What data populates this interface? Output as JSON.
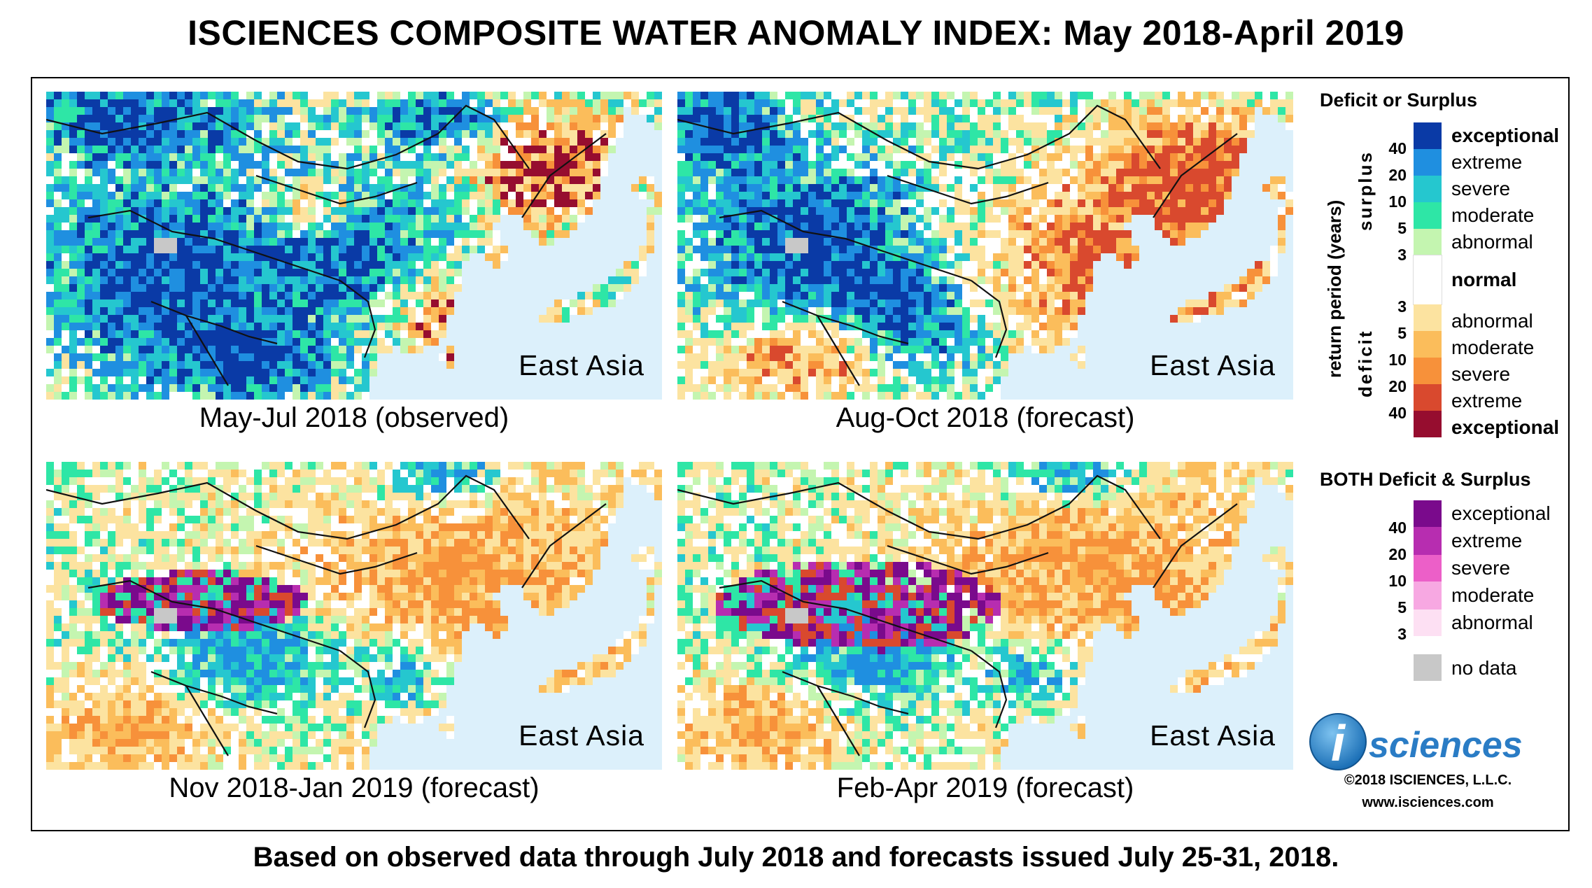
{
  "title": "ISCIENCES COMPOSITE WATER ANOMALY INDEX: May 2018-April 2019",
  "footer": "Based on observed data through July 2018 and forecasts issued July 25-31, 2018.",
  "region_label": "East Asia",
  "panels": [
    {
      "caption": "May-Jul 2018 (observed)",
      "scenario": "surplus"
    },
    {
      "caption": "Aug-Oct 2018 (forecast)",
      "scenario": "mixed"
    },
    {
      "caption": "Nov 2018-Jan 2019 (forecast)",
      "scenario": "deficit"
    },
    {
      "caption": "Feb-Apr 2019 (forecast)",
      "scenario": "deficit2"
    }
  ],
  "legend": {
    "deficit_surplus_title": "Deficit or Surplus",
    "axis_title": "return period (years)",
    "surplus_word": "surplus",
    "deficit_word": "deficit",
    "surplus": [
      {
        "label": "exceptional",
        "color": "#0a3aa6",
        "bold": true
      },
      {
        "label": "extreme",
        "color": "#1f8fe0",
        "bold": false
      },
      {
        "label": "severe",
        "color": "#25c7cf",
        "bold": false
      },
      {
        "label": "moderate",
        "color": "#2ee6a6",
        "bold": false
      },
      {
        "label": "abnormal",
        "color": "#c4f5b0",
        "bold": false
      }
    ],
    "normal": {
      "label": "normal",
      "color": "#ffffff"
    },
    "deficit": [
      {
        "label": "abnormal",
        "color": "#fce3a0",
        "bold": false
      },
      {
        "label": "moderate",
        "color": "#fbbd5b",
        "bold": false
      },
      {
        "label": "severe",
        "color": "#f7913a",
        "bold": false
      },
      {
        "label": "extreme",
        "color": "#d9492e",
        "bold": false
      },
      {
        "label": "exceptional",
        "color": "#960d2f",
        "bold": true
      }
    ],
    "surplus_ticks": [
      "40",
      "20",
      "10",
      "5",
      "3"
    ],
    "deficit_ticks": [
      "3",
      "5",
      "10",
      "20",
      "40"
    ],
    "both_title": "BOTH Deficit & Surplus",
    "both": [
      {
        "label": "exceptional",
        "color": "#7a0a8c"
      },
      {
        "label": "extreme",
        "color": "#b72db0"
      },
      {
        "label": "severe",
        "color": "#ec5fc8"
      },
      {
        "label": "moderate",
        "color": "#f7a8e2"
      },
      {
        "label": "abnormal",
        "color": "#fde0f3"
      }
    ],
    "both_ticks": [
      "40",
      "20",
      "10",
      "5",
      "3"
    ],
    "no_data": {
      "label": "no data",
      "color": "#c8c8c8"
    }
  },
  "logo": {
    "letter": "i",
    "word": "sciences"
  },
  "copyright": "©2018 ISCIENCES, L.L.C.",
  "website": "www.isciences.com"
}
